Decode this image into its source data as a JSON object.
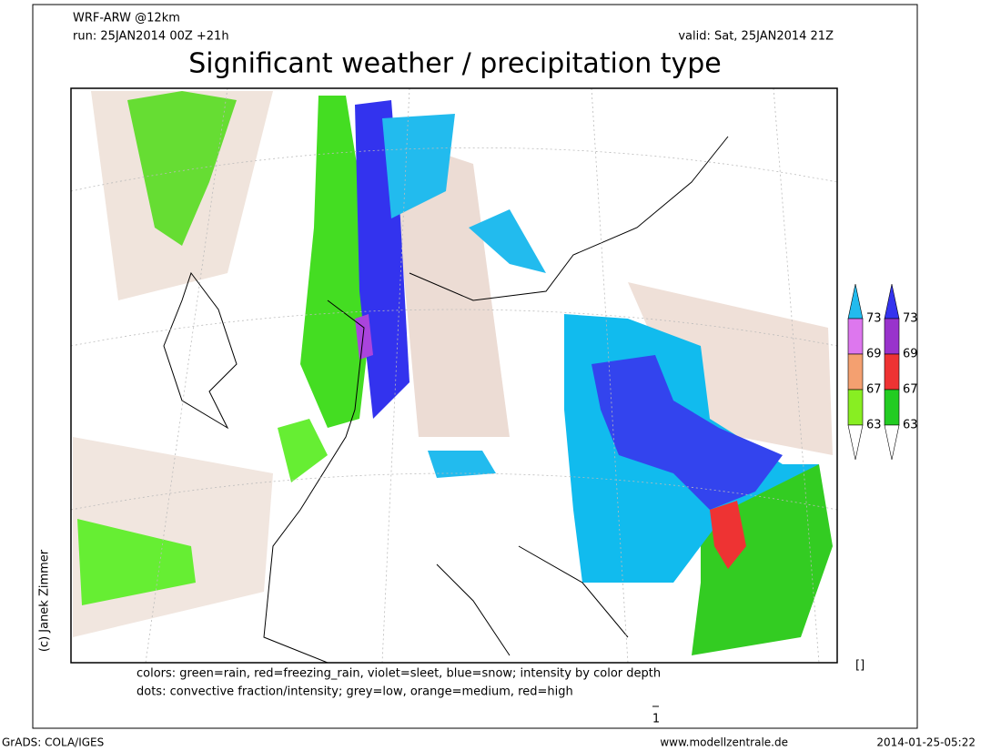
{
  "header": {
    "model": "WRF-ARW @12km",
    "run": "run: 25JAN2014 00Z +21h",
    "valid": "valid: Sat, 25JAN2014 21Z",
    "title": "Significant weather / precipitation type"
  },
  "credit": "(c) Janek Zimmer",
  "legend": {
    "left": [
      73,
      69,
      67,
      63
    ],
    "right": [
      73,
      69,
      67,
      63
    ],
    "marker": "[]"
  },
  "notes": [
    "colors: green=rain, red=freezing_rain, violet=sleet, blue=snow; intensity by color depth",
    "dots: convective fraction/intensity;  grey=low, orange=medium, red=high"
  ],
  "page_number": "1",
  "footer": {
    "software": "GrADS: COLA/IGES",
    "url": "www.modellzentrale.de",
    "timestamp": "2014-01-25-05:22"
  }
}
